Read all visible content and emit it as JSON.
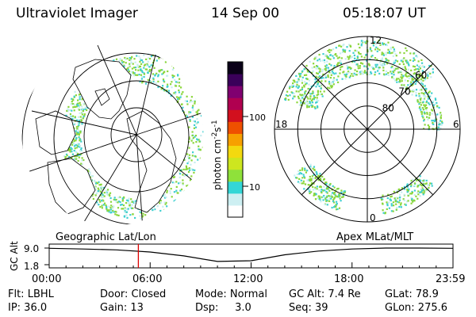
{
  "header": {
    "instrument": "Ultraviolet Imager",
    "date": "14 Sep 00",
    "time": "05:18:07 UT"
  },
  "colorbar": {
    "unit_label": "photon cm",
    "unit_sup1": "-2",
    "unit_mid": "s",
    "unit_sup2": "-1",
    "ticks": [
      {
        "label": "100",
        "value": 100
      },
      {
        "label": "10",
        "value": 10
      }
    ],
    "colors": [
      "#ffffff",
      "#cdeff2",
      "#33d6d6",
      "#8fe13a",
      "#cde61f",
      "#f3d90f",
      "#f7a000",
      "#ef5000",
      "#d2101e",
      "#b00050",
      "#800070",
      "#3a005a",
      "#0a0018"
    ]
  },
  "geo_map": {
    "aurora_color": "#8ad63a",
    "aurora_secondary": "#3ecfd0",
    "aurora_dim": "#c7eef0"
  },
  "polar_plot": {
    "lat_labels": [
      {
        "label": "80",
        "lat": 80
      },
      {
        "label": "70",
        "lat": 70
      },
      {
        "label": "60",
        "lat": 60
      }
    ],
    "mlt_labels": [
      {
        "label": "12",
        "mlt": 12
      },
      {
        "label": "18",
        "mlt": 18
      },
      {
        "label": "6",
        "mlt": 6
      },
      {
        "label": "0",
        "mlt": 0
      }
    ],
    "min_lat": 50
  },
  "panel": {
    "left_title": "Geographic Lat/Lon",
    "right_title": "Apex  MLat/MLT",
    "axis_label": "GC Alt",
    "y_top": "9.0",
    "y_bottom": "1.8",
    "x_ticks": [
      "00:00",
      "06:00",
      "12:00",
      "18:00",
      "23:59"
    ],
    "marker_color": "#dd0000"
  },
  "footer": {
    "rows": [
      [
        "Flt: LBHL",
        "Door: Closed",
        "Mode: Normal",
        "GC Alt: 7.4 Re",
        "GLat:  78.9"
      ],
      [
        "IP: 36.0",
        "Gain: 13",
        "Dsp:     3.0",
        "Seq: 39",
        "GLon: 275.6"
      ]
    ]
  },
  "altitude_series": {
    "x_hours": [
      0,
      2,
      4,
      6,
      8,
      10,
      12,
      14,
      16,
      18,
      20,
      22,
      23.98
    ],
    "alt_re": [
      8.9,
      8.6,
      8.2,
      7.3,
      5.6,
      3.2,
      3.5,
      6.1,
      7.7,
      8.6,
      9.0,
      9.0,
      8.9
    ],
    "min_re": 1.8,
    "max_re": 9.0,
    "marker_hour": 5.3,
    "marker_alt": 7.4
  }
}
